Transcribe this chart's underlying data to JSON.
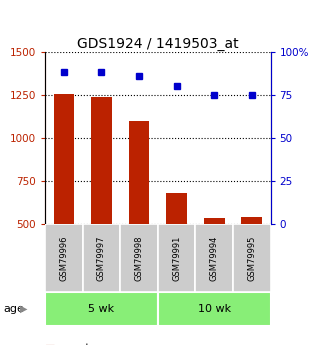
{
  "title": "GDS1924 / 1419503_at",
  "samples": [
    "GSM79996",
    "GSM79997",
    "GSM79998",
    "GSM79991",
    "GSM79994",
    "GSM79995"
  ],
  "counts": [
    1255,
    1240,
    1100,
    680,
    535,
    540
  ],
  "percentiles": [
    88,
    88,
    86,
    80,
    75,
    75
  ],
  "groups": [
    {
      "label": "5 wk",
      "indices": [
        0,
        1,
        2
      ]
    },
    {
      "label": "10 wk",
      "indices": [
        3,
        4,
        5
      ]
    }
  ],
  "group_attr": "age",
  "ylim_left": [
    500,
    1500
  ],
  "ylim_right": [
    0,
    100
  ],
  "yticks_left": [
    500,
    750,
    1000,
    1250,
    1500
  ],
  "yticks_right": [
    0,
    25,
    50,
    75,
    100
  ],
  "bar_color": "#bb2200",
  "dot_color": "#0000cc",
  "group_color": "#88ee77",
  "sample_bg_color": "#cccccc",
  "title_fontsize": 10,
  "tick_fontsize": 7.5,
  "sample_fontsize": 6.0,
  "group_fontsize": 8,
  "legend_fontsize": 7.5
}
